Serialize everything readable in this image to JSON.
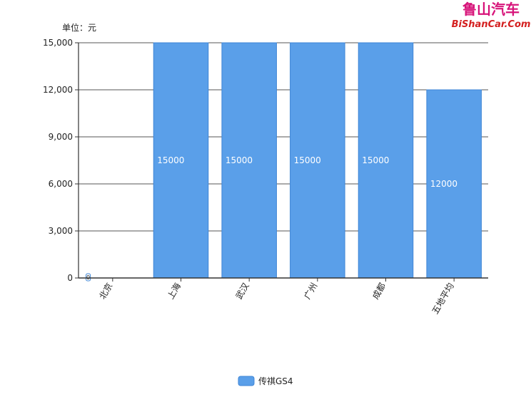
{
  "watermark": {
    "line1": "鲁山汽车",
    "line2": "BiShanCar.Com"
  },
  "unit_label": "单位：元",
  "colors": {
    "bar_fill": "#5a9fe9",
    "bar_stroke": "#3f86d6",
    "axis": "#333333",
    "grid": "#555555"
  },
  "chart_data": {
    "type": "bar",
    "categories": [
      "北京",
      "上海",
      "武汉",
      "广州",
      "成都",
      "五地平均"
    ],
    "series": [
      {
        "name": "传祺GS4",
        "values": [
          0,
          15000,
          15000,
          15000,
          15000,
          12000
        ]
      }
    ],
    "data_labels": [
      "0",
      "15000",
      "15000",
      "15000",
      "15000",
      "12000"
    ],
    "ylim": [
      0,
      15000
    ],
    "yticks": [
      0,
      3000,
      6000,
      9000,
      12000,
      15000
    ],
    "ytick_labels": [
      "0",
      "3,000",
      "6,000",
      "9,000",
      "12,000",
      "15,000"
    ],
    "grid": true,
    "legend_position": "bottom"
  }
}
